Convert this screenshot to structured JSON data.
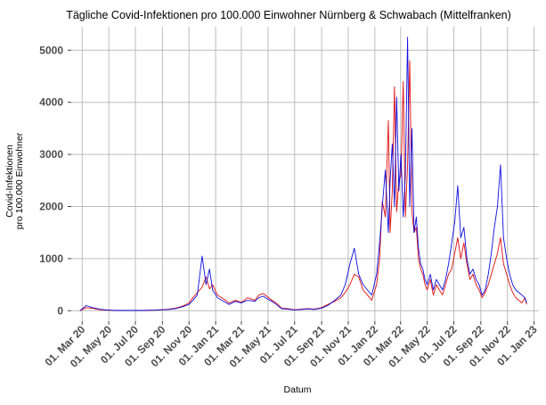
{
  "chart_data": {
    "type": "line",
    "title": "Tägliche Covid-Infektionen pro 100.000 Einwohner Nürnberg & Schwabach (Mittelfranken)",
    "xlabel": "Datum",
    "ylabel_line1": "Covid-Infektionen",
    "ylabel_line2": "pro 100.000 Einwohner",
    "ylim": [
      -200,
      5450
    ],
    "yticks": [
      0,
      1000,
      2000,
      3000,
      4000,
      5000
    ],
    "xlim": [
      "2020-02-05",
      "2023-01-12"
    ],
    "xticks": [
      {
        "date": "2020-03-01",
        "label": "01. Mar 20"
      },
      {
        "date": "2020-05-01",
        "label": "01. May 20"
      },
      {
        "date": "2020-07-01",
        "label": "01. Jul 20"
      },
      {
        "date": "2020-09-01",
        "label": "01. Sep 20"
      },
      {
        "date": "2020-11-01",
        "label": "01. Nov 20"
      },
      {
        "date": "2021-01-01",
        "label": "01. Jan 21"
      },
      {
        "date": "2021-03-01",
        "label": "01. Mar 21"
      },
      {
        "date": "2021-05-01",
        "label": "01. May 21"
      },
      {
        "date": "2021-07-01",
        "label": "01. Jul 21"
      },
      {
        "date": "2021-09-01",
        "label": "01. Sep 21"
      },
      {
        "date": "2021-11-01",
        "label": "01. Nov 21"
      },
      {
        "date": "2022-01-01",
        "label": "01. Jan 22"
      },
      {
        "date": "2022-03-01",
        "label": "01. Mar 22"
      },
      {
        "date": "2022-05-01",
        "label": "01. May 22"
      },
      {
        "date": "2022-07-01",
        "label": "01. Jul 22"
      },
      {
        "date": "2022-09-01",
        "label": "01. Sep 22"
      },
      {
        "date": "2022-11-01",
        "label": "01. Nov 22"
      },
      {
        "date": "2023-01-01",
        "label": "01. Jan 23"
      }
    ],
    "grid": true,
    "legend": "none",
    "series": [
      {
        "color": "#e00000",
        "x": [
          "2020-02-25",
          "2020-03-10",
          "2020-03-25",
          "2020-04-10",
          "2020-04-25",
          "2020-05-15",
          "2020-06-15",
          "2020-07-15",
          "2020-08-15",
          "2020-09-15",
          "2020-10-01",
          "2020-10-15",
          "2020-11-01",
          "2020-11-10",
          "2020-11-20",
          "2020-12-01",
          "2020-12-10",
          "2020-12-18",
          "2020-12-25",
          "2021-01-05",
          "2021-01-15",
          "2021-02-01",
          "2021-02-15",
          "2021-03-01",
          "2021-03-15",
          "2021-04-01",
          "2021-04-10",
          "2021-04-20",
          "2021-05-01",
          "2021-05-10",
          "2021-05-20",
          "2021-06-01",
          "2021-06-15",
          "2021-07-01",
          "2021-07-15",
          "2021-08-01",
          "2021-08-15",
          "2021-09-01",
          "2021-09-15",
          "2021-10-01",
          "2021-10-15",
          "2021-10-25",
          "2021-11-05",
          "2021-11-15",
          "2021-11-25",
          "2021-12-05",
          "2021-12-15",
          "2021-12-25",
          "2022-01-05",
          "2022-01-12",
          "2022-01-18",
          "2022-01-25",
          "2022-02-01",
          "2022-02-05",
          "2022-02-10",
          "2022-02-15",
          "2022-02-20",
          "2022-02-25",
          "2022-03-02",
          "2022-03-07",
          "2022-03-12",
          "2022-03-17",
          "2022-03-22",
          "2022-03-27",
          "2022-04-01",
          "2022-04-06",
          "2022-04-11",
          "2022-04-16",
          "2022-04-21",
          "2022-04-26",
          "2022-05-01",
          "2022-05-08",
          "2022-05-15",
          "2022-05-22",
          "2022-05-29",
          "2022-06-05",
          "2022-06-12",
          "2022-06-19",
          "2022-06-26",
          "2022-07-03",
          "2022-07-10",
          "2022-07-17",
          "2022-07-24",
          "2022-07-31",
          "2022-08-07",
          "2022-08-14",
          "2022-08-21",
          "2022-08-28",
          "2022-09-04",
          "2022-09-11",
          "2022-09-18",
          "2022-09-25",
          "2022-10-02",
          "2022-10-09",
          "2022-10-16",
          "2022-10-23",
          "2022-10-30",
          "2022-11-06",
          "2022-11-13",
          "2022-11-20",
          "2022-11-27",
          "2022-12-04",
          "2022-12-11",
          "2022-12-15"
        ],
        "values": [
          0,
          60,
          45,
          20,
          10,
          5,
          5,
          5,
          10,
          30,
          50,
          80,
          150,
          250,
          350,
          450,
          650,
          420,
          500,
          300,
          250,
          150,
          200,
          160,
          250,
          200,
          300,
          330,
          260,
          200,
          150,
          50,
          40,
          20,
          30,
          40,
          30,
          60,
          120,
          180,
          250,
          350,
          500,
          700,
          650,
          400,
          300,
          200,
          500,
          1000,
          2100,
          1800,
          3650,
          1500,
          2300,
          4300,
          1900,
          2500,
          2600,
          4400,
          1800,
          2800,
          4800,
          1900,
          1500,
          1600,
          1000,
          800,
          700,
          500,
          400,
          600,
          300,
          500,
          400,
          300,
          500,
          700,
          800,
          1100,
          1400,
          1000,
          1300,
          900,
          600,
          700,
          500,
          400,
          250,
          350,
          500,
          700,
          900,
          1100,
          1400,
          900,
          700,
          500,
          350,
          250,
          200,
          150,
          250,
          120
        ]
      },
      {
        "color": "#0000e0",
        "x": [
          "2020-02-25",
          "2020-03-10",
          "2020-03-25",
          "2020-04-10",
          "2020-04-25",
          "2020-05-15",
          "2020-06-15",
          "2020-07-15",
          "2020-08-15",
          "2020-09-15",
          "2020-10-01",
          "2020-10-15",
          "2020-11-01",
          "2020-11-10",
          "2020-11-20",
          "2020-12-01",
          "2020-12-10",
          "2020-12-18",
          "2020-12-25",
          "2021-01-05",
          "2021-01-15",
          "2021-02-01",
          "2021-02-15",
          "2021-03-01",
          "2021-03-15",
          "2021-04-01",
          "2021-04-10",
          "2021-04-20",
          "2021-05-01",
          "2021-05-10",
          "2021-05-20",
          "2021-06-01",
          "2021-06-15",
          "2021-07-01",
          "2021-07-15",
          "2021-08-01",
          "2021-08-15",
          "2021-09-01",
          "2021-09-15",
          "2021-10-01",
          "2021-10-15",
          "2021-10-25",
          "2021-11-05",
          "2021-11-15",
          "2021-11-25",
          "2021-12-05",
          "2021-12-15",
          "2021-12-25",
          "2022-01-05",
          "2022-01-12",
          "2022-01-18",
          "2022-01-25",
          "2022-02-01",
          "2022-02-05",
          "2022-02-10",
          "2022-02-15",
          "2022-02-20",
          "2022-02-25",
          "2022-03-02",
          "2022-03-07",
          "2022-03-12",
          "2022-03-17",
          "2022-03-22",
          "2022-03-27",
          "2022-04-01",
          "2022-04-06",
          "2022-04-11",
          "2022-04-16",
          "2022-04-21",
          "2022-04-26",
          "2022-05-01",
          "2022-05-08",
          "2022-05-15",
          "2022-05-22",
          "2022-05-29",
          "2022-06-05",
          "2022-06-12",
          "2022-06-19",
          "2022-06-26",
          "2022-07-03",
          "2022-07-10",
          "2022-07-17",
          "2022-07-24",
          "2022-07-31",
          "2022-08-07",
          "2022-08-14",
          "2022-08-21",
          "2022-08-28",
          "2022-09-04",
          "2022-09-11",
          "2022-09-18",
          "2022-09-25",
          "2022-10-02",
          "2022-10-09",
          "2022-10-16",
          "2022-10-23",
          "2022-10-30",
          "2022-11-06",
          "2022-11-13",
          "2022-11-20",
          "2022-11-27",
          "2022-12-04",
          "2022-12-11",
          "2022-12-15"
        ],
        "values": [
          0,
          100,
          60,
          30,
          15,
          5,
          5,
          5,
          10,
          25,
          40,
          70,
          120,
          200,
          300,
          1050,
          500,
          800,
          400,
          250,
          200,
          120,
          180,
          150,
          200,
          180,
          250,
          280,
          220,
          180,
          120,
          40,
          30,
          15,
          25,
          35,
          25,
          50,
          100,
          200,
          300,
          500,
          900,
          1200,
          700,
          500,
          400,
          300,
          700,
          1300,
          2000,
          2700,
          1500,
          2500,
          3200,
          2000,
          4100,
          2300,
          3000,
          1800,
          2600,
          5250,
          2000,
          3500,
          1500,
          1800,
          1200,
          900,
          800,
          600,
          500,
          700,
          400,
          600,
          500,
          400,
          600,
          900,
          1300,
          1700,
          2400,
          1400,
          1600,
          1000,
          700,
          800,
          600,
          500,
          300,
          400,
          700,
          1100,
          1600,
          2000,
          2800,
          1400,
          1000,
          700,
          500,
          400,
          350,
          300,
          250,
          150
        ]
      }
    ]
  }
}
